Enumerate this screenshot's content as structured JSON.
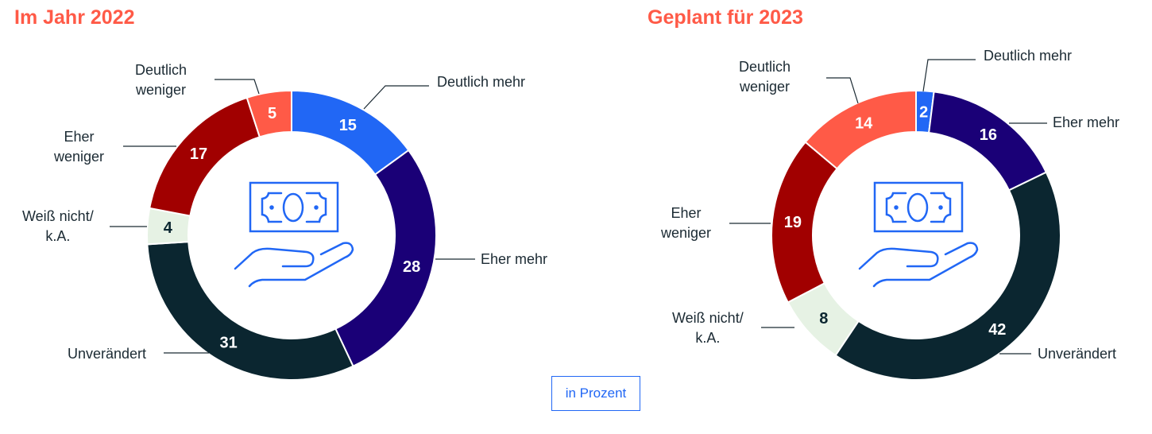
{
  "chart_data": [
    {
      "type": "pie",
      "title": "Im Jahr 2022",
      "unit_label": "in Prozent",
      "categories": [
        "Deutlich mehr",
        "Eher mehr",
        "Unverändert",
        "Weiß nicht/ k.A.",
        "Eher weniger",
        "Deutlich weniger"
      ],
      "values": [
        15,
        28,
        31,
        4,
        17,
        5
      ]
    },
    {
      "type": "pie",
      "title": "Geplant für 2023",
      "categories": [
        "Deutlich mehr",
        "Eher mehr",
        "Unverändert",
        "Weiß nicht/ k.A.",
        "Eher weniger",
        "Deutlich weniger"
      ],
      "values": [
        2,
        16,
        42,
        8,
        19,
        14
      ]
    }
  ],
  "labels": {
    "deutlich_mehr": "Deutlich mehr",
    "eher_mehr": "Eher mehr",
    "unveraendert": "Unverändert",
    "weiss_1": "Weiß nicht/",
    "weiss_2": "k.A.",
    "eher_1": "Eher",
    "weniger": "weniger",
    "deutlich_1": "Deutlich"
  },
  "unit": "in Prozent",
  "colors": [
    "#2167f5",
    "#1a0077",
    "#0b2630",
    "#e6f2e4",
    "#a10000",
    "#ff5a47"
  ],
  "text_colors": [
    "#ffffff",
    "#ffffff",
    "#ffffff",
    "#0b2630",
    "#ffffff",
    "#ffffff"
  ]
}
